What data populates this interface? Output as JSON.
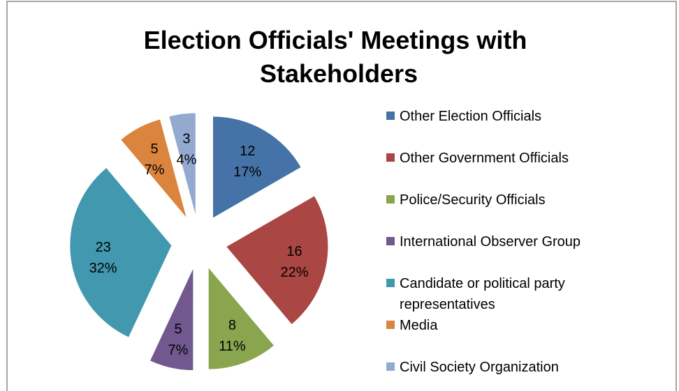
{
  "chart_data": {
    "type": "pie",
    "title": "Election Officials' Meetings with Stakeholders",
    "categories": [
      "Other Election Officials",
      "Other Government Officials",
      "Police/Security Officials",
      "International Observer Group",
      "Candidate or political party representatives",
      "Media",
      "Civil Society Organization"
    ],
    "values": [
      12,
      16,
      8,
      5,
      23,
      5,
      3
    ],
    "percent_labels": [
      "17%",
      "22%",
      "11%",
      "7%",
      "32%",
      "7%",
      "4%"
    ],
    "colors": [
      "#4572a7",
      "#aa4643",
      "#89a54e",
      "#71588f",
      "#4198af",
      "#db843d",
      "#93a9cf"
    ],
    "legend": "right"
  }
}
